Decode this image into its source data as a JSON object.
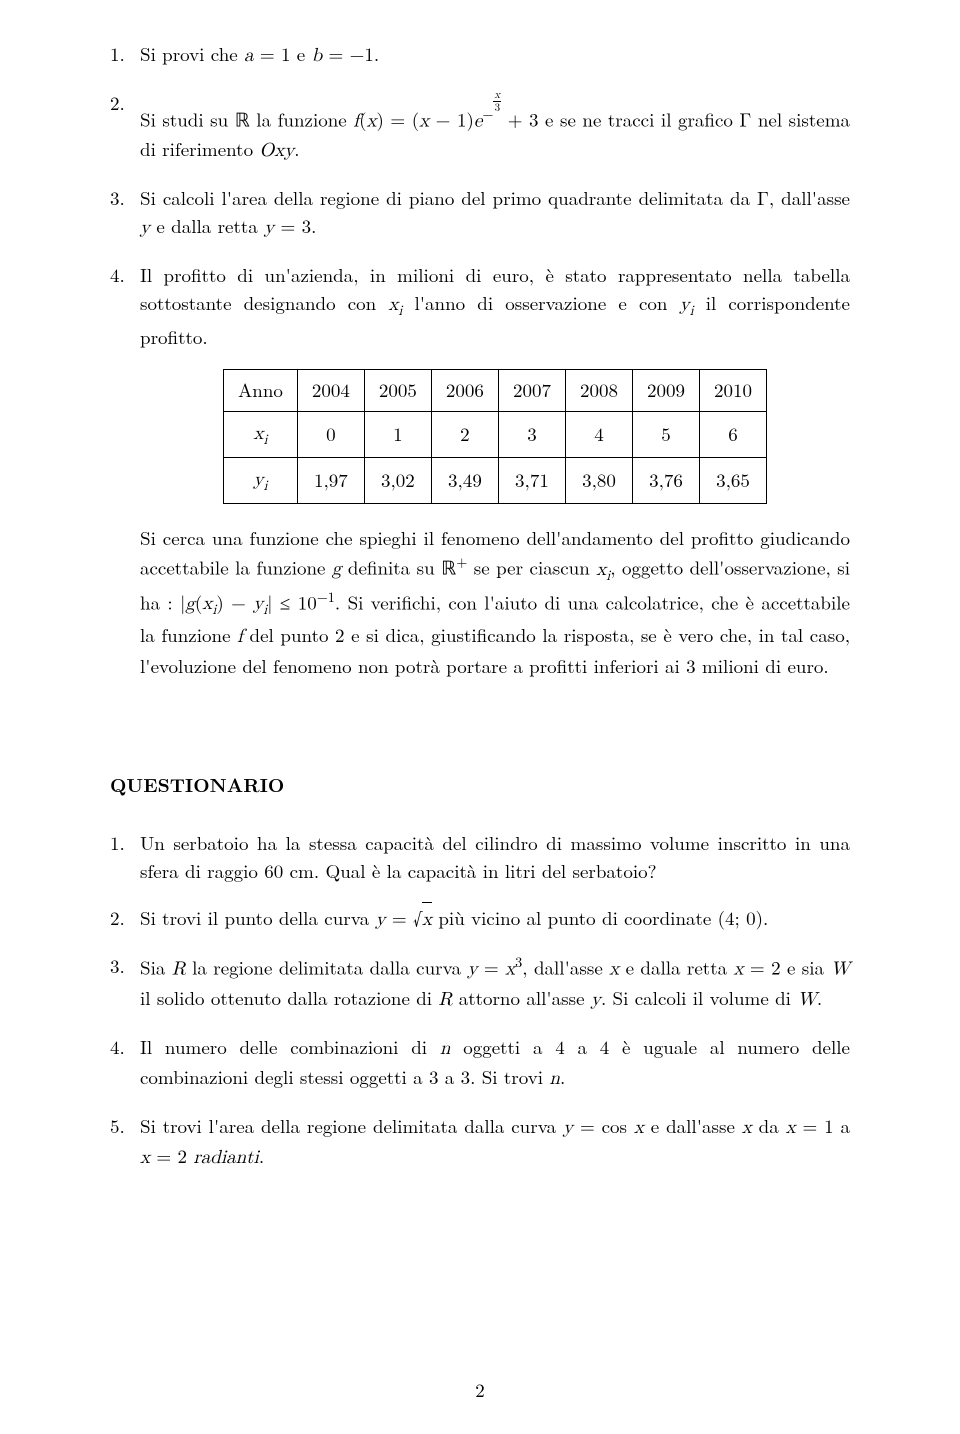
{
  "items_top": [
    {
      "num": "1.",
      "text": "Si provi che <span class='math'>a</span> = 1 e <span class='math'>b</span> = −1."
    },
    {
      "num": "2.",
      "text": "Si studi su <span class='bb'>ℝ</span> la funzione <span class='math'>f</span>(<span class='math'>x</span>) = (<span class='math'>x</span> − 1)<span class='math'>e</span><sup>−<span class='supfrac'><span class='n'><span class='math'>x</span></span><span class='d'>3</span></span></sup> + 3 e se ne tracci il grafico Γ nel sistema di riferimento <span class='math'>Oxy</span>."
    },
    {
      "num": "3.",
      "text": "Si calcoli l'area della regione di piano del primo quadrante delimitata da Γ, dall'asse <span class='math'>y</span> e dalla retta <span class='math'>y</span> = 3."
    },
    {
      "num": "4.",
      "text": "Il profitto di un'azienda, in milioni di euro, è stato rappresentato nella tabella sottostante designando con <span class='math'>x<sub>i</sub></span> l'anno di osservazione e con <span class='math'>y<sub>i</sub></span> il corrispondente profitto."
    }
  ],
  "table": {
    "rows": [
      [
        "Anno",
        "2004",
        "2005",
        "2006",
        "2007",
        "2008",
        "2009",
        "2010"
      ],
      [
        "<span class='math'>x<sub>i</sub></span>",
        "0",
        "1",
        "2",
        "3",
        "4",
        "5",
        "6"
      ],
      [
        "<span class='math'>y<sub>i</sub></span>",
        "1,97",
        "3,02",
        "3,49",
        "3,71",
        "3,80",
        "3,76",
        "3,65"
      ]
    ]
  },
  "after_table": "Si cerca una funzione che spieghi il fenomeno dell'andamento del profitto giudicando accettabile la funzione <span class='math'>g</span> definita su <span class='bb'>ℝ</span><sup>+</sup> se per ciascun <span class='math'>x<sub>i</sub></span>, oggetto dell'osservazione, si ha : |<span class='math'>g</span>(<span class='math'>x<sub>i</sub></span>) − <span class='math'>y<sub>i</sub></span>| ≤ 10<sup>−1</sup>. Si verifichi, con l'aiuto di una calcolatrice, che è accettabile la funzione <span class='math'>f</span> del punto 2 e si dica, giustificando la risposta, se è vero che, in tal caso, l'evoluzione del fenomeno non potrà portare a profitti inferiori ai 3 milioni di euro.",
  "section_title": "QUESTIONARIO",
  "items_q": [
    {
      "num": "1.",
      "text": "Un serbatoio ha la stessa capacità del cilindro di massimo volume inscritto in una sfera di raggio 60 cm. Qual è la capacità in litri del serbatoio?"
    },
    {
      "num": "2.",
      "text": "Si trovi il punto della curva <span class='math'>y</span> = √<span style='border-top:1px solid #000; padding-top:1px;'><span class='math'>x</span></span> più vicino al punto di coordinate (4; 0)."
    },
    {
      "num": "3.",
      "text": "Sia <span class='math'>R</span> la regione delimitata dalla curva <span class='math'>y</span> = <span class='math'>x</span><sup>3</sup>, dall'asse <span class='math'>x</span> e dalla retta <span class='math'>x</span> = 2 e sia <span class='math'>W</span> il solido ottenuto dalla rotazione di <span class='math'>R</span> attorno all'asse <span class='math'>y</span>. Si calcoli il volume di <span class='math'>W</span>."
    },
    {
      "num": "4.",
      "text": "Il numero delle combinazioni di <span class='math'>n</span> oggetti a 4 a 4 è uguale al numero delle combinazioni degli stessi oggetti a 3 a 3. Si trovi <span class='math'>n</span>."
    },
    {
      "num": "5.",
      "text": "Si trovi l'area della regione delimitata dalla curva <span class='math'>y</span> = cos <span class='math'>x</span> e dall'asse <span class='math'>x</span> da <span class='math'>x</span> = 1 a <span class='math'>x</span> = 2 <span class='math'>radianti</span>."
    }
  ],
  "page_number": "2"
}
